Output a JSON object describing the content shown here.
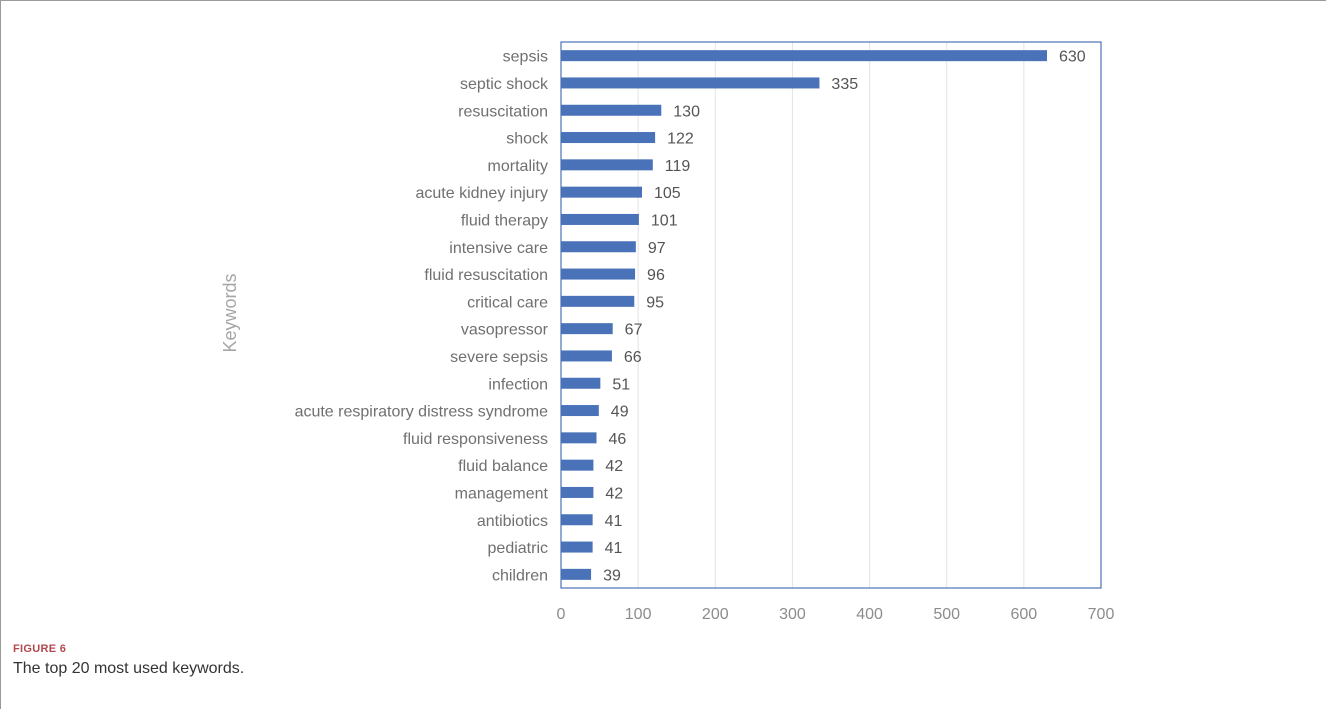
{
  "figure": {
    "label": "FIGURE 6",
    "caption": "The top 20 most used keywords."
  },
  "chart_data": {
    "type": "bar",
    "orientation": "horizontal",
    "categories": [
      "sepsis",
      "septic shock",
      "resuscitation",
      "shock",
      "mortality",
      "acute kidney injury",
      "fluid therapy",
      "intensive care",
      "fluid resuscitation",
      "critical care",
      "vasopressor",
      "severe sepsis",
      "infection",
      "acute respiratory distress syndrome",
      "fluid responsiveness",
      "fluid balance",
      "management",
      "antibiotics",
      "pediatric",
      "children"
    ],
    "values": [
      630,
      335,
      130,
      122,
      119,
      105,
      101,
      97,
      96,
      95,
      67,
      66,
      51,
      49,
      46,
      42,
      42,
      41,
      41,
      39
    ],
    "ylabel": "Keywords",
    "xlabel": "",
    "xlim": [
      0,
      700
    ],
    "xticks": [
      0,
      100,
      200,
      300,
      400,
      500,
      600,
      700
    ],
    "grid": true,
    "data_labels": true,
    "bar_color": "#4a72b8"
  }
}
